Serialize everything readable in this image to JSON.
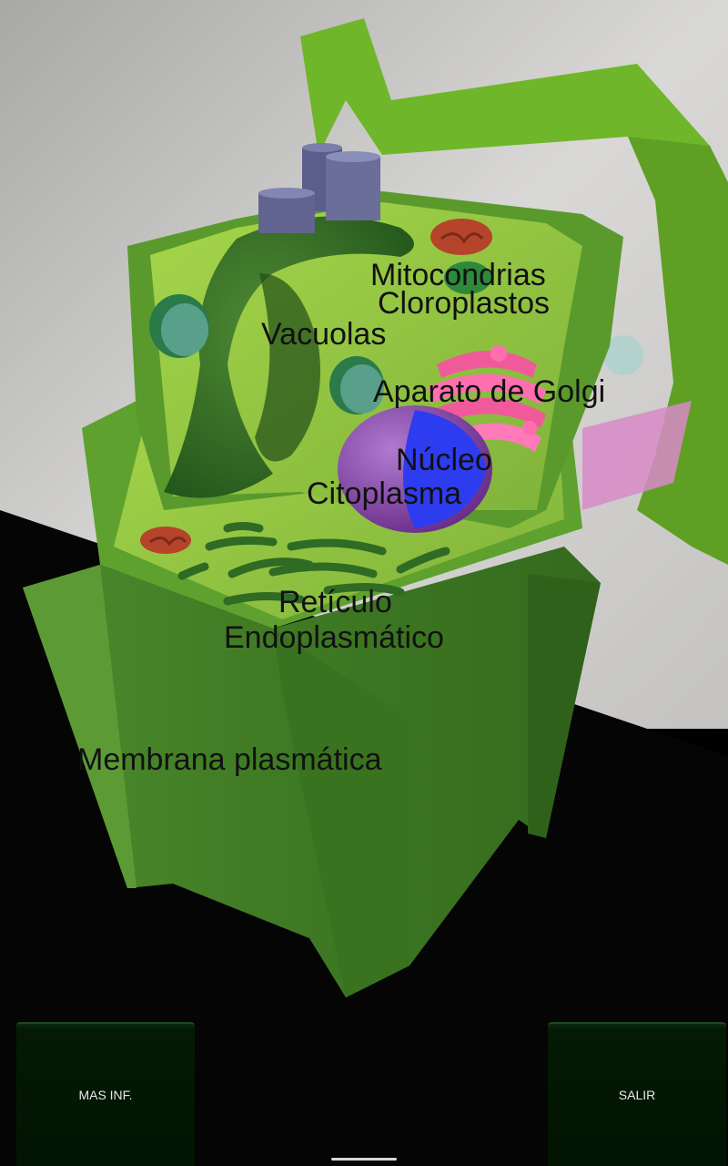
{
  "labels": {
    "mitocondrias": "Mitocondrias",
    "cloroplastos": "Cloroplastos",
    "vacuolas": "Vacuolas",
    "golgi": "Aparato de Golgi",
    "nucleo": "Núcleo",
    "citoplasma": "Citoplasma",
    "reticulo_1": "Retículo",
    "reticulo_2": "Endoplasmático",
    "membrana": "Membrana plasmática"
  },
  "buttons": {
    "more_info": "MAS INF.",
    "exit": "SALIR"
  },
  "colors": {
    "cell_wall": "#3f7a24",
    "cytoplasm": "#8dc63f",
    "vacuole": "#2f6b24",
    "chloroplast": "#4a8a6a",
    "golgi": "#f05a9a",
    "nucleus": "#8a4aa8",
    "nucleolus": "#2e3cf0",
    "mitochondria": "#b5442a",
    "button_bg": "#031803"
  }
}
